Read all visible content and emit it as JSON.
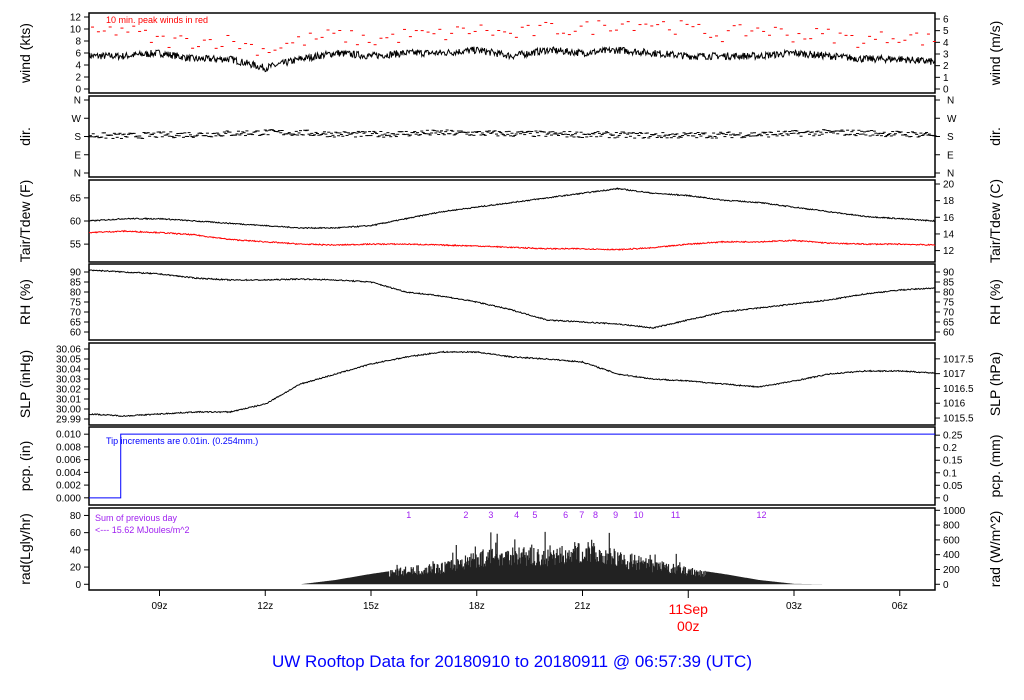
{
  "title": "UW Rooftop Data for 20180910  to  20180911 @ 06:57:39  (UTC)",
  "colors": {
    "main": "#000000",
    "peak": "#ff0000",
    "dew": "#ff0000",
    "pcp": "#0000ff",
    "note": "#a020f0",
    "title": "#0000ff",
    "date": "#ff0000"
  },
  "chart_data": {
    "type": "line",
    "x_range": [
      "2018-09-10 07:00",
      "2018-09-11 07:00"
    ],
    "x_ticks": [
      {
        "time": 9,
        "label": "09z"
      },
      {
        "time": 12,
        "label": "12z"
      },
      {
        "time": 15,
        "label": "15z"
      },
      {
        "time": 18,
        "label": "18z"
      },
      {
        "time": 21,
        "label": "21z"
      },
      {
        "time": 27,
        "label": "03z"
      },
      {
        "time": 30,
        "label": "06z"
      }
    ],
    "date_tick": {
      "time": 24,
      "label1": "11Sep",
      "label2": "00z"
    },
    "hours": [
      7,
      8,
      9,
      10,
      11,
      12,
      13,
      14,
      15,
      16,
      17,
      18,
      19,
      20,
      21,
      22,
      23,
      24,
      25,
      26,
      27,
      28,
      29,
      30,
      31
    ],
    "panels": [
      {
        "id": "wind",
        "ylabel": "wind (kts)",
        "ylabel_right": "wind (m/s)",
        "ylim": [
          0,
          12
        ],
        "yticks": [
          0,
          2,
          4,
          6,
          8,
          10,
          12
        ],
        "right_ylim": [
          0,
          6.17
        ],
        "right_ticks": [
          0,
          1,
          2,
          3,
          4,
          5,
          6
        ],
        "annotation": "10 min. peak winds in red",
        "series": [
          {
            "name": "wind",
            "values": [
              5.5,
              5.5,
              6,
              5,
              5,
              3.5,
              5,
              6,
              5.5,
              6,
              6,
              6.5,
              5.5,
              6.5,
              6,
              6.5,
              6,
              5.5,
              5.5,
              5.5,
              6,
              5.5,
              5,
              5,
              4.5
            ]
          },
          {
            "name": "peak",
            "style": "dash",
            "values": [
              9,
              10,
              8,
              8,
              8,
              6.5,
              8,
              9,
              8,
              9,
              9,
              10,
              9,
              10,
              10,
              11,
              11,
              10,
              9,
              10,
              9,
              9,
              8,
              9,
              8
            ]
          }
        ]
      },
      {
        "id": "dir",
        "ylabel": "dir.",
        "ylabel_right": "dir.",
        "ylim": [
          0,
          360
        ],
        "ytick_labels": [
          {
            "v": 0,
            "l": "N"
          },
          {
            "v": 90,
            "l": "E"
          },
          {
            "v": 180,
            "l": "S"
          },
          {
            "v": 270,
            "l": "W"
          },
          {
            "v": 360,
            "l": "N"
          }
        ],
        "series": [
          {
            "name": "dir",
            "style": "dots",
            "values": [
              185,
              182,
              188,
              190,
              195,
              200,
              198,
              192,
              190,
              195,
              198,
              196,
              194,
              192,
              190,
              188,
              185,
              186,
              188,
              190,
              195,
              200,
              198,
              192,
              190
            ]
          }
        ]
      },
      {
        "id": "temp",
        "ylabel": "Tair/Tdew (F)",
        "ylabel_right": "Tair/Tdew (C)",
        "ylim": [
          52,
          68
        ],
        "yticks": [
          55,
          60,
          65
        ],
        "right_ylim": [
          11.11,
          20
        ],
        "right_ticks": [
          12,
          14,
          16,
          18,
          20
        ],
        "series": [
          {
            "name": "Tair",
            "values": [
              60,
              60.5,
              60.5,
              60,
              59.5,
              59,
              58.5,
              58.5,
              59,
              60.5,
              62,
              63,
              64,
              65,
              66,
              67,
              66,
              65.5,
              64.5,
              64,
              63,
              62,
              61,
              60.5,
              60
            ]
          },
          {
            "name": "Tdew",
            "color": "#ff0000",
            "values": [
              57.5,
              57.8,
              57.5,
              57,
              56,
              55.5,
              55,
              54.8,
              55,
              55,
              54.8,
              54.6,
              54.3,
              54,
              54,
              53.8,
              54.2,
              55,
              55.5,
              55.5,
              55.8,
              55.2,
              55,
              55,
              54.8
            ]
          }
        ]
      },
      {
        "id": "rh",
        "ylabel": "RH (%)",
        "ylabel_right": "RH (%)",
        "ylim": [
          58,
          92
        ],
        "yticks": [
          60,
          65,
          70,
          75,
          80,
          85,
          90
        ],
        "right_ylim": [
          58,
          92
        ],
        "right_ticks": [
          60,
          65,
          70,
          75,
          80,
          85,
          90
        ],
        "series": [
          {
            "name": "RH",
            "values": [
              91,
              90,
              89,
              87,
              86,
              86,
              86.5,
              86,
              85,
              80,
              78,
              75,
              71,
              66,
              65,
              64,
              62,
              66,
              70,
              72,
              74,
              76,
              79,
              81,
              82
            ]
          }
        ]
      },
      {
        "id": "slp",
        "ylabel": "SLP (inHg)",
        "ylabel_right": "SLP (hPa)",
        "ylim": [
          29.988,
          30.062
        ],
        "yticks": [
          29.99,
          30.0,
          30.01,
          30.02,
          30.03,
          30.04,
          30.05,
          30.06
        ],
        "ytick_decimals": 2,
        "right_ylim": [
          1015.4,
          1017.9
        ],
        "right_ticks": [
          1015.5,
          1016,
          1016.5,
          1017,
          1017.5
        ],
        "series": [
          {
            "name": "SLP",
            "values": [
              29.995,
              29.993,
              29.995,
              29.997,
              29.997,
              30.005,
              30.025,
              30.035,
              30.045,
              30.052,
              30.057,
              30.057,
              30.052,
              30.05,
              30.047,
              30.035,
              30.03,
              30.028,
              30.025,
              30.022,
              30.028,
              30.035,
              30.038,
              30.038,
              30.036
            ]
          }
        ]
      },
      {
        "id": "pcp",
        "ylabel": "pcp. (in)",
        "ylabel_right": "pcp. (mm)",
        "ylim": [
          -0.0005,
          0.0105
        ],
        "yticks": [
          0,
          0.002,
          0.004,
          0.006,
          0.008,
          0.01
        ],
        "ytick_decimals": 3,
        "right_ylim": [
          -0.0127,
          0.2667
        ],
        "right_ticks": [
          0,
          0.05,
          0.1,
          0.15,
          0.2,
          0.25
        ],
        "annotation": "Tip increments are 0.01in. (0.254mm.)",
        "step": {
          "time": 7.9,
          "before": 0,
          "after": 0.01
        }
      },
      {
        "id": "rad",
        "ylabel": "rad(Lgly/hr)",
        "ylabel_right": "rad (W/m^2)",
        "ylim": [
          -2,
          84
        ],
        "yticks": [
          0,
          20,
          40,
          60,
          80
        ],
        "right_ylim": [
          -23.3,
          977
        ],
        "right_ticks": [
          0,
          200,
          400,
          600,
          800,
          1000
        ],
        "annotation1": "Sum of previous day",
        "annotation2": "<--- 15.62 MJoules/m^2",
        "tips": [
          {
            "t": 16.07,
            "l": "1"
          },
          {
            "t": 17.69,
            "l": "2"
          },
          {
            "t": 18.4,
            "l": "3"
          },
          {
            "t": 19.13,
            "l": "4"
          },
          {
            "t": 19.65,
            "l": "5"
          },
          {
            "t": 20.52,
            "l": "6"
          },
          {
            "t": 20.98,
            "l": "7"
          },
          {
            "t": 21.37,
            "l": "8"
          },
          {
            "t": 21.94,
            "l": "9"
          },
          {
            "t": 22.59,
            "l": "10"
          },
          {
            "t": 23.64,
            "l": "11"
          },
          {
            "t": 26.08,
            "l": "12"
          }
        ],
        "series": [
          {
            "name": "rad",
            "style": "bars",
            "values": [
              0,
              0,
              0,
              0,
              0,
              0,
              0,
              5,
              12,
              18,
              22,
              35,
              40,
              35,
              45,
              35,
              25,
              18,
              12,
              5,
              0.5,
              0,
              0,
              0,
              0
            ]
          }
        ]
      }
    ]
  }
}
